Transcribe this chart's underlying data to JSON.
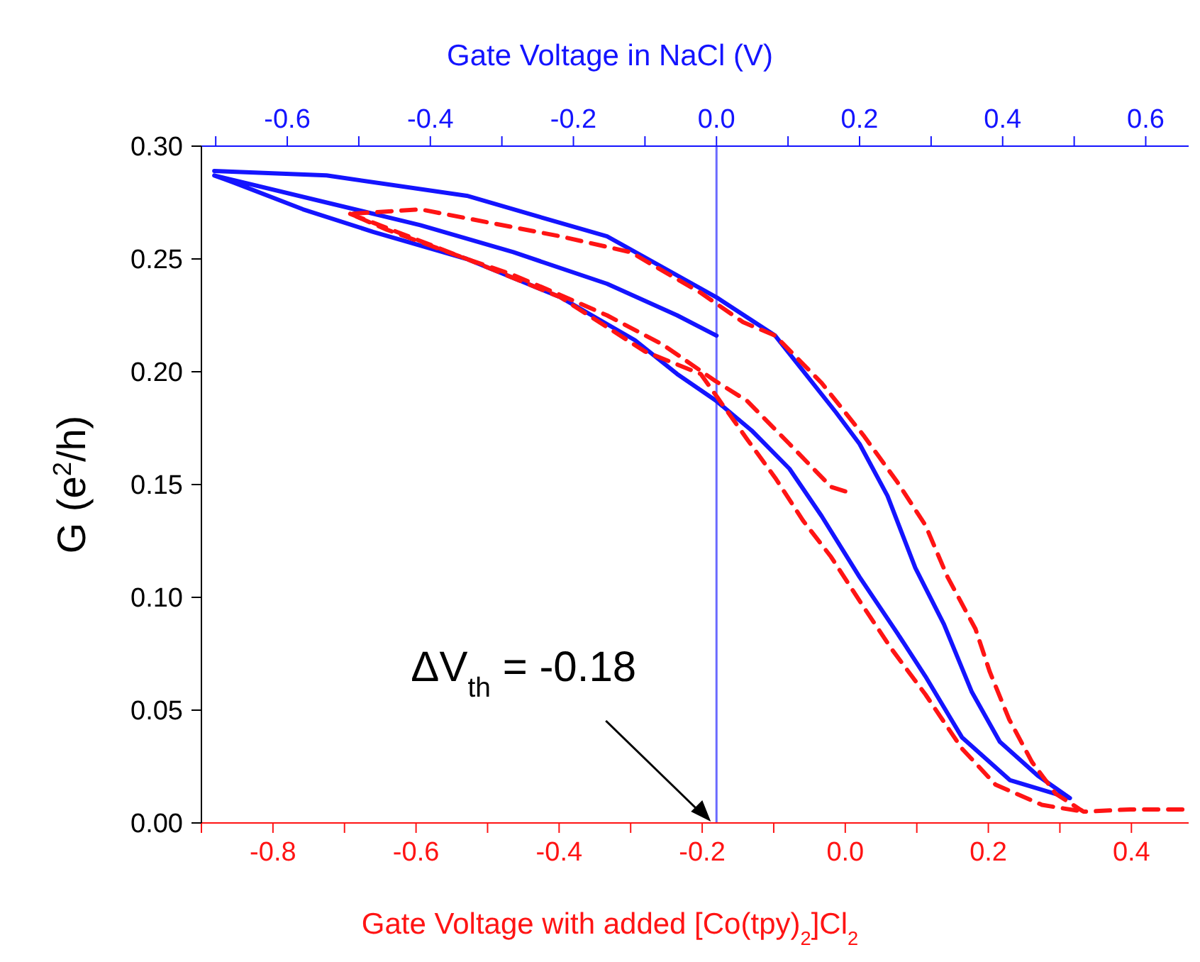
{
  "chart_data": {
    "type": "line",
    "xlabel": "Gate Voltage with added [Co(tpy)$_{2}$]Cl$_{2}$",
    "x2label": "Gate Voltage in NaCl (V)",
    "ylabel": "G (e$^{2}$/h)",
    "xlim": [
      -0.9,
      0.48
    ],
    "xticks": [
      {
        "value": -0.9,
        "label": null
      },
      -0.8,
      {
        "value": -0.7,
        "label": null
      },
      -0.6,
      {
        "value": -0.5,
        "label": null
      },
      -0.4,
      {
        "value": -0.3,
        "label": null
      },
      -0.2,
      {
        "value": -0.1,
        "label": null
      },
      {
        "value": 0,
        "label": "0.0"
      },
      {
        "value": 0.1,
        "label": null
      },
      0.2,
      {
        "value": 0.3,
        "label": null
      },
      0.4
    ],
    "x2lim": [
      -0.72,
      0.66
    ],
    "x2ticks": [
      {
        "value": -0.7,
        "label": null
      },
      -0.6,
      {
        "value": -0.5,
        "label": null
      },
      -0.4,
      {
        "value": -0.3,
        "label": null
      },
      -0.2,
      {
        "value": -0.1,
        "label": null
      },
      {
        "value": 0,
        "label": "0.0"
      },
      {
        "value": 0.1,
        "label": null
      },
      0.2,
      {
        "value": 0.3,
        "label": null
      },
      0.4,
      {
        "value": 0.5,
        "label": null
      },
      0.6
    ],
    "ylim": [
      0,
      0.3
    ],
    "yticks": [
      {
        "value": 0,
        "label": "0.00"
      },
      0.05,
      {
        "value": 0.1,
        "label": "0.10"
      },
      0.15,
      {
        "value": 0.2,
        "label": "0.20"
      },
      0.25,
      {
        "value": 0.3,
        "label": "0.30"
      }
    ],
    "marker": "none",
    "series": [
      {
        "color": "#1414ff",
        "axis": "x2",
        "line_style": "solid",
        "x": [
          -0.702,
          -0.545,
          -0.349,
          -0.153,
          0,
          0.082,
          0.167,
          0.2,
          0.239,
          0.278,
          0.318,
          0.357,
          0.396,
          0.449,
          0.494,
          0.41,
          0.343,
          0.292,
          0.253,
          0.2,
          0.147,
          0.102,
          0.049,
          0,
          -0.055,
          -0.114,
          -0.218,
          -0.349,
          -0.48,
          -0.578,
          -0.676,
          -0.702,
          -0.545,
          -0.414,
          -0.284,
          -0.153,
          -0.055,
          0
        ],
        "values": [
          0.289,
          0.287,
          0.278,
          0.26,
          0.233,
          0.216,
          0.182,
          0.168,
          0.145,
          0.113,
          0.088,
          0.058,
          0.036,
          0.021,
          0.011,
          0.019,
          0.038,
          0.065,
          0.084,
          0.109,
          0.136,
          0.157,
          0.174,
          0.187,
          0.199,
          0.214,
          0.233,
          0.25,
          0.262,
          0.272,
          0.284,
          0.287,
          0.275,
          0.265,
          0.253,
          0.239,
          0.225,
          0.216
        ]
      },
      {
        "color": "#ff1414",
        "line_style": "dashed",
        "x": [
          0,
          -0.02,
          -0.078,
          -0.137,
          -0.182,
          -0.255,
          -0.333,
          -0.398,
          -0.465,
          -0.529,
          -0.641,
          -0.692,
          -0.594,
          -0.496,
          -0.398,
          -0.3,
          -0.202,
          -0.143,
          -0.098,
          -0.033,
          0.025,
          0.073,
          0.112,
          0.143,
          0.182,
          0.202,
          0.229,
          0.261,
          0.294,
          0.333,
          0.398,
          0.48
        ],
        "values": [
          0.147,
          0.149,
          0.168,
          0.187,
          0.196,
          0.212,
          0.225,
          0.234,
          0.243,
          0.25,
          0.263,
          0.27,
          0.272,
          0.266,
          0.26,
          0.253,
          0.235,
          0.222,
          0.216,
          0.195,
          0.172,
          0.151,
          0.132,
          0.109,
          0.086,
          0.067,
          0.046,
          0.027,
          0.013,
          0.005,
          0.006,
          0.006
        ]
      },
      {
        "color": "#ff1414",
        "line_style": "dashed",
        "x": [
          -0.692,
          -0.529,
          -0.398,
          -0.28,
          -0.202,
          -0.137,
          -0.098,
          -0.059,
          -0.02,
          0.025,
          0.065,
          0.112,
          0.163,
          0.21,
          0.275,
          0.333
        ],
        "values": [
          0.27,
          0.25,
          0.233,
          0.209,
          0.199,
          0.17,
          0.153,
          0.134,
          0.118,
          0.096,
          0.077,
          0.057,
          0.033,
          0.017,
          0.008,
          0.005
        ]
      }
    ],
    "ref_lines": [
      {
        "axis": "x",
        "value": -0.18,
        "color": "#6a6aff",
        "line_style": "solid"
      }
    ],
    "annotations": [
      "ΔV$_{th}$ = -0.18"
    ]
  }
}
